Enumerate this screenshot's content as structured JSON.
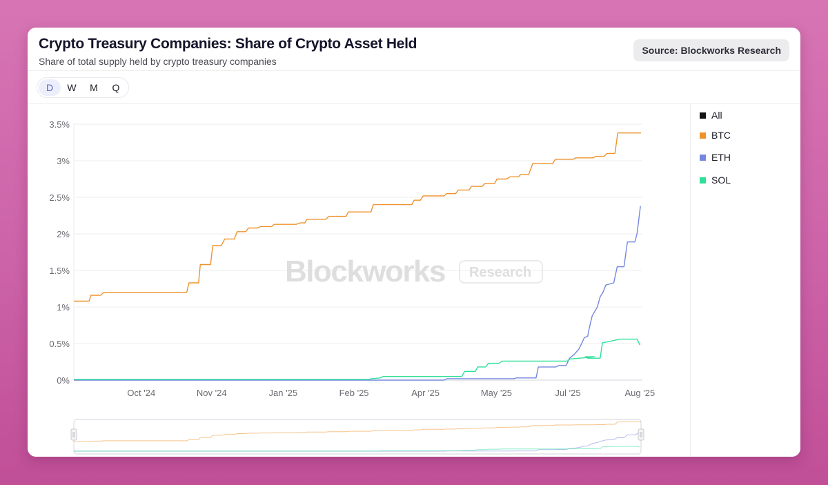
{
  "header": {
    "title": "Crypto Treasury Companies: Share of Crypto Asset Held",
    "subtitle": "Share of total supply held by crypto treasury companies",
    "source": "Source: Blockworks Research"
  },
  "toolbar": {
    "frequencies": [
      {
        "label": "D",
        "active": true
      },
      {
        "label": "W",
        "active": false
      },
      {
        "label": "M",
        "active": false
      },
      {
        "label": "Q",
        "active": false
      }
    ]
  },
  "watermark": {
    "brand": "Blockworks",
    "tag": "Research"
  },
  "legend": [
    {
      "label": "All",
      "color": "#151515"
    },
    {
      "label": "BTC",
      "color": "#ee922c"
    },
    {
      "label": "ETH",
      "color": "#7587de"
    },
    {
      "label": "SOL",
      "color": "#2ee09a"
    }
  ],
  "chart_data": {
    "type": "line",
    "title": "Crypto Treasury Companies: Share of Crypto Asset Held",
    "subtitle": "Share of total supply held by crypto treasury companies",
    "xlabel": "",
    "ylabel": "",
    "x_unit": "time index (0 = series start, 100 = series end)",
    "xlim": [
      0,
      100
    ],
    "ylim": [
      0,
      3.5
    ],
    "y_ticks": [
      0,
      0.5,
      1,
      1.5,
      2,
      2.5,
      3,
      3.5
    ],
    "y_tick_labels": [
      "0%",
      "0.5%",
      "1%",
      "1.5%",
      "2%",
      "2.5%",
      "3%",
      "3.5%"
    ],
    "x_ticks": [
      {
        "t": 11.9,
        "label": "Oct '24"
      },
      {
        "t": 24.3,
        "label": "Nov '24"
      },
      {
        "t": 36.9,
        "label": "Jan '25"
      },
      {
        "t": 49.4,
        "label": "Feb '25"
      },
      {
        "t": 62.0,
        "label": "Apr '25"
      },
      {
        "t": 74.5,
        "label": "May '25"
      },
      {
        "t": 87.1,
        "label": "Jul '25"
      },
      {
        "t": 99.8,
        "label": "Aug '25"
      }
    ],
    "grid": true,
    "legend_position": "right",
    "series": [
      {
        "name": "BTC",
        "color": "#ee922c",
        "step": true,
        "points": [
          [
            0,
            1.08
          ],
          [
            2.7,
            1.08
          ],
          [
            3.0,
            1.16
          ],
          [
            4.7,
            1.16
          ],
          [
            5.3,
            1.2
          ],
          [
            19.9,
            1.2
          ],
          [
            20.3,
            1.33
          ],
          [
            22.0,
            1.33
          ],
          [
            22.3,
            1.58
          ],
          [
            24.1,
            1.58
          ],
          [
            24.5,
            1.84
          ],
          [
            26.0,
            1.84
          ],
          [
            26.6,
            1.93
          ],
          [
            28.3,
            1.93
          ],
          [
            28.8,
            2.03
          ],
          [
            30.3,
            2.03
          ],
          [
            30.8,
            2.08
          ],
          [
            32.4,
            2.08
          ],
          [
            32.9,
            2.1
          ],
          [
            34.9,
            2.1
          ],
          [
            35.3,
            2.13
          ],
          [
            39.2,
            2.13
          ],
          [
            39.9,
            2.15
          ],
          [
            40.7,
            2.15
          ],
          [
            41.1,
            2.2
          ],
          [
            44.4,
            2.2
          ],
          [
            45.0,
            2.24
          ],
          [
            48.0,
            2.24
          ],
          [
            48.4,
            2.3
          ],
          [
            52.4,
            2.3
          ],
          [
            52.8,
            2.4
          ],
          [
            59.6,
            2.4
          ],
          [
            60.0,
            2.46
          ],
          [
            61.1,
            2.46
          ],
          [
            61.6,
            2.52
          ],
          [
            65.3,
            2.52
          ],
          [
            65.7,
            2.55
          ],
          [
            67.3,
            2.55
          ],
          [
            67.8,
            2.6
          ],
          [
            69.7,
            2.6
          ],
          [
            70.1,
            2.65
          ],
          [
            72.0,
            2.65
          ],
          [
            72.5,
            2.69
          ],
          [
            74.2,
            2.69
          ],
          [
            74.6,
            2.75
          ],
          [
            76.3,
            2.75
          ],
          [
            76.9,
            2.78
          ],
          [
            78.4,
            2.78
          ],
          [
            78.8,
            2.81
          ],
          [
            80.2,
            2.81
          ],
          [
            80.9,
            2.96
          ],
          [
            84.4,
            2.96
          ],
          [
            84.9,
            3.02
          ],
          [
            88.0,
            3.02
          ],
          [
            88.5,
            3.04
          ],
          [
            91.6,
            3.04
          ],
          [
            92.0,
            3.06
          ],
          [
            93.5,
            3.06
          ],
          [
            94.0,
            3.1
          ],
          [
            95.4,
            3.1
          ],
          [
            95.9,
            3.38
          ],
          [
            100,
            3.38
          ]
        ]
      },
      {
        "name": "ETH",
        "color": "#7587de",
        "step": true,
        "points": [
          [
            0,
            0.0
          ],
          [
            65.3,
            0.0
          ],
          [
            65.8,
            0.02
          ],
          [
            77.6,
            0.02
          ],
          [
            78.0,
            0.03
          ],
          [
            81.5,
            0.03
          ],
          [
            81.9,
            0.18
          ],
          [
            85.0,
            0.18
          ],
          [
            85.5,
            0.2
          ],
          [
            86.8,
            0.2
          ],
          [
            87.4,
            0.3
          ],
          [
            88.2,
            0.35
          ],
          [
            89.1,
            0.43
          ],
          [
            90.0,
            0.58
          ],
          [
            90.6,
            0.6
          ],
          [
            90.9,
            0.72
          ],
          [
            91.4,
            0.88
          ],
          [
            92.3,
            1.0
          ],
          [
            92.8,
            1.14
          ],
          [
            93.3,
            1.2
          ],
          [
            93.8,
            1.3
          ],
          [
            95.2,
            1.33
          ],
          [
            95.8,
            1.55
          ],
          [
            97.0,
            1.55
          ],
          [
            97.6,
            1.89
          ],
          [
            98.9,
            1.89
          ],
          [
            99.3,
            2.0
          ],
          [
            99.9,
            2.38
          ]
        ]
      },
      {
        "name": "SOL",
        "color": "#2ee09a",
        "step": true,
        "points": [
          [
            0,
            0.01
          ],
          [
            52.0,
            0.01
          ],
          [
            52.5,
            0.02
          ],
          [
            54.0,
            0.03
          ],
          [
            54.5,
            0.05
          ],
          [
            68.4,
            0.05
          ],
          [
            68.9,
            0.12
          ],
          [
            70.8,
            0.12
          ],
          [
            71.2,
            0.18
          ],
          [
            72.6,
            0.18
          ],
          [
            73.1,
            0.23
          ],
          [
            75.0,
            0.23
          ],
          [
            75.5,
            0.26
          ],
          [
            87.0,
            0.26
          ],
          [
            87.5,
            0.29
          ],
          [
            89.2,
            0.3
          ],
          [
            91.8,
            0.32
          ],
          [
            90.2,
            0.32
          ],
          [
            90.6,
            0.3
          ],
          [
            92.8,
            0.3
          ],
          [
            93.2,
            0.51
          ],
          [
            94.5,
            0.53
          ],
          [
            96.3,
            0.56
          ],
          [
            99.3,
            0.56
          ],
          [
            99.8,
            0.48
          ]
        ]
      },
      {
        "name": "All",
        "color": "#151515",
        "step": true,
        "visible": false,
        "points": []
      }
    ]
  }
}
